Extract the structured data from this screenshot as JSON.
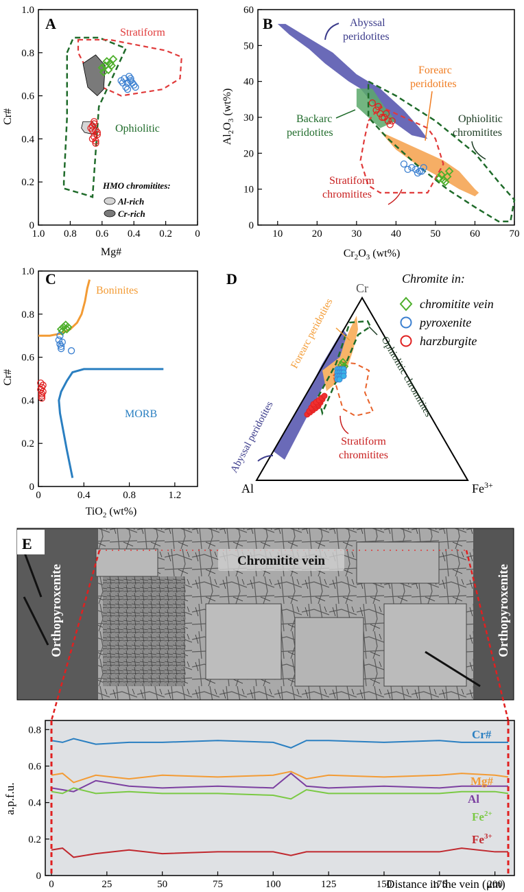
{
  "colors": {
    "chromitite_vein": "#4daf2b",
    "pyroxenite": "#3a7fd0",
    "harzburgite": "#e02020",
    "ophiolitic": "#1f6b2a",
    "stratiform": "#e03a3a",
    "abyssal": "#6a6ab8",
    "forearc": "#f5a04a",
    "backarc": "#5aa86a",
    "boninite": "#f39b34",
    "morb": "#2a7fc1",
    "profile_cr": "#2a7fc1",
    "profile_mg": "#f39b34",
    "profile_al": "#7b3fa0",
    "profile_fe2": "#7ac943",
    "profile_fe3": "#c0272d"
  },
  "chart_data": [
    {
      "panel": "A",
      "type": "scatter",
      "xlabel": "Mg#",
      "ylabel": "Cr#",
      "xlim": [
        1.0,
        0
      ],
      "ylim": [
        0,
        1.0
      ],
      "xticks": [
        "1.0",
        "0.8",
        "0.6",
        "0.4",
        "0.2",
        "0"
      ],
      "yticks": [
        "0",
        "0.2",
        "0.4",
        "0.6",
        "0.8",
        "1.0"
      ],
      "annotations": [
        "Stratiform",
        "Ophiolitic",
        "HMO chromitites:",
        "Al-rich",
        "Cr-rich"
      ],
      "series": [
        {
          "name": "chromitite vein",
          "marker": "diamond",
          "x": [
            0.6,
            0.58,
            0.56,
            0.55,
            0.57,
            0.59,
            0.54,
            0.53
          ],
          "y": [
            0.73,
            0.74,
            0.72,
            0.75,
            0.76,
            0.71,
            0.74,
            0.77
          ]
        },
        {
          "name": "pyroxenite",
          "marker": "circle",
          "x": [
            0.48,
            0.46,
            0.44,
            0.42,
            0.4,
            0.45,
            0.43,
            0.41,
            0.47,
            0.39,
            0.44,
            0.42
          ],
          "y": [
            0.67,
            0.68,
            0.66,
            0.67,
            0.65,
            0.64,
            0.69,
            0.66,
            0.66,
            0.64,
            0.63,
            0.68
          ]
        },
        {
          "name": "harzburgite",
          "marker": "circle",
          "x": [
            0.65,
            0.66,
            0.64,
            0.63,
            0.67,
            0.65,
            0.64,
            0.66,
            0.65,
            0.63,
            0.64,
            0.66
          ],
          "y": [
            0.48,
            0.46,
            0.44,
            0.42,
            0.45,
            0.41,
            0.39,
            0.4,
            0.47,
            0.43,
            0.38,
            0.44
          ]
        }
      ]
    },
    {
      "panel": "B",
      "type": "scatter",
      "xlabel": "Cr2O3 (wt%)",
      "ylabel": "Al2O3 (wt%)",
      "xlim": [
        5,
        70
      ],
      "ylim": [
        0,
        60
      ],
      "xticks": [
        "10",
        "20",
        "30",
        "40",
        "50",
        "60",
        "70"
      ],
      "yticks": [
        "0",
        "10",
        "20",
        "30",
        "40",
        "50",
        "60"
      ],
      "annotations": [
        "Abyssal peridotites",
        "Forearc peridotites",
        "Backarc peridotites",
        "Ophiolitic chromitites",
        "Stratiform chromitites"
      ],
      "series": [
        {
          "name": "chromitite vein",
          "marker": "diamond",
          "x": [
            51,
            52,
            53,
            52.5,
            51.5,
            53.5
          ],
          "y": [
            13,
            12.5,
            13.5,
            12,
            14,
            15
          ]
        },
        {
          "name": "pyroxenite",
          "marker": "circle",
          "x": [
            42,
            44,
            45,
            46,
            47,
            45.5,
            43,
            46.5
          ],
          "y": [
            17,
            16,
            15.5,
            15,
            16,
            14.5,
            15.5,
            15
          ]
        },
        {
          "name": "harzburgite",
          "marker": "circle",
          "x": [
            34,
            35,
            36,
            37,
            38,
            38.5,
            37.5,
            35.5,
            36.5,
            39
          ],
          "y": [
            34,
            32,
            31,
            30,
            29,
            28,
            31,
            33,
            30,
            29
          ]
        }
      ]
    },
    {
      "panel": "C",
      "type": "scatter",
      "xlabel": "TiO2 (wt%)",
      "ylabel": "Cr#",
      "xlim": [
        0,
        1.4
      ],
      "ylim": [
        0,
        1.0
      ],
      "xticks": [
        "0",
        "0.4",
        "0.8",
        "1.2"
      ],
      "yticks": [
        "0",
        "0.2",
        "0.4",
        "0.6",
        "0.8",
        "1.0"
      ],
      "annotations": [
        "Boninites",
        "MORB"
      ],
      "series": [
        {
          "name": "chromitite vein",
          "marker": "diamond",
          "x": [
            0.2,
            0.22,
            0.24,
            0.26,
            0.21,
            0.25
          ],
          "y": [
            0.73,
            0.74,
            0.75,
            0.74,
            0.72,
            0.73
          ]
        },
        {
          "name": "pyroxenite",
          "marker": "circle",
          "x": [
            0.18,
            0.19,
            0.2,
            0.21,
            0.19,
            0.2,
            0.29
          ],
          "y": [
            0.68,
            0.66,
            0.64,
            0.67,
            0.7,
            0.65,
            0.63
          ]
        },
        {
          "name": "harzburgite",
          "marker": "circle",
          "x": [
            0.02,
            0.03,
            0.04,
            0.03,
            0.02,
            0.04,
            0.03,
            0.03
          ],
          "y": [
            0.48,
            0.46,
            0.44,
            0.42,
            0.45,
            0.47,
            0.43,
            0.41
          ]
        }
      ]
    },
    {
      "panel": "D",
      "type": "scatter",
      "title": "",
      "corner_labels": [
        "Cr",
        "Al",
        "Fe 3+"
      ],
      "legend_title": "Chromite in:",
      "legend": [
        "chromitite vein",
        "pyroxenite",
        "harzburgite"
      ],
      "annotations": [
        "Forearc peridotites",
        "Ophiolitic chromitites",
        "Abyssal peridotites",
        "Stratiform chromitites"
      ]
    },
    {
      "panel": "E",
      "type": "line",
      "xlabel": "Distance in the vein (μm)",
      "ylabel": "a.p.f.u.",
      "xlim": [
        0,
        206
      ],
      "ylim": [
        0,
        0.85
      ],
      "xticks": [
        "0",
        "25",
        "50",
        "75",
        "100",
        "125",
        "150",
        "175",
        "200"
      ],
      "yticks": [
        "0",
        "0.2",
        "0.4",
        "0.6",
        "0.8"
      ],
      "image_labels": [
        "Chromitite vein",
        "Orthopyroxenite",
        "Orthopyroxenite"
      ],
      "x": [
        0,
        5,
        10,
        20,
        35,
        50,
        75,
        100,
        108,
        115,
        125,
        150,
        175,
        185,
        200,
        206
      ],
      "series": [
        {
          "name": "Cr#",
          "values": [
            0.74,
            0.73,
            0.75,
            0.72,
            0.73,
            0.73,
            0.74,
            0.73,
            0.7,
            0.74,
            0.74,
            0.73,
            0.74,
            0.73,
            0.73,
            0.73
          ]
        },
        {
          "name": "Mg#",
          "values": [
            0.55,
            0.56,
            0.51,
            0.55,
            0.53,
            0.55,
            0.54,
            0.55,
            0.57,
            0.53,
            0.55,
            0.54,
            0.55,
            0.56,
            0.55,
            0.54
          ]
        },
        {
          "name": "Al",
          "values": [
            0.48,
            0.47,
            0.46,
            0.52,
            0.49,
            0.48,
            0.49,
            0.48,
            0.56,
            0.49,
            0.48,
            0.49,
            0.48,
            0.49,
            0.49,
            0.49
          ]
        },
        {
          "name": "Fe2+",
          "values": [
            0.46,
            0.45,
            0.48,
            0.45,
            0.46,
            0.45,
            0.45,
            0.44,
            0.42,
            0.47,
            0.45,
            0.45,
            0.45,
            0.46,
            0.46,
            0.45
          ]
        },
        {
          "name": "Fe3+",
          "values": [
            0.14,
            0.15,
            0.1,
            0.12,
            0.14,
            0.12,
            0.13,
            0.13,
            0.11,
            0.13,
            0.13,
            0.13,
            0.13,
            0.15,
            0.13,
            0.13
          ]
        }
      ]
    }
  ],
  "panel_letters": [
    "A",
    "B",
    "C",
    "D",
    "E"
  ],
  "annotations": {
    "a_stratiform": "Stratiform",
    "a_ophiolitic": "Ophiolitic",
    "a_hmo": "HMO chromitites:",
    "a_alrich": "Al-rich",
    "a_crrich": "Cr-rich",
    "b_abyssal_1": "Abyssal",
    "b_abyssal_2": "peridotites",
    "b_forearc_1": "Forearc",
    "b_forearc_2": "peridotites",
    "b_backarc_1": "Backarc",
    "b_backarc_2": "peridotites",
    "b_ophio_1": "Ophiolitic",
    "b_ophio_2": "chromitites",
    "b_strat_1": "Stratiform",
    "b_strat_2": "chromitites",
    "c_boninites": "Boninites",
    "c_morb": "MORB",
    "d_cr": "Cr",
    "d_al": "Al",
    "d_fe": "Fe",
    "d_fe_sup": "3+",
    "d_legend_title": "Chromite in:",
    "d_legend_vein": "chromitite vein",
    "d_legend_pyx": "pyroxenite",
    "d_legend_harz": "harzburgite",
    "d_forearc": "Forearc peridotites",
    "d_ophio": "Ophiolitic chromitites",
    "d_abyssal": "Abyssal peridotites",
    "d_strat_1": "Stratiform",
    "d_strat_2": "chromitites",
    "e_vein": "Chromitite vein",
    "e_opx_left": "Orthopyroxenite",
    "e_opx_right": "Orthopyroxenite",
    "e_cr": "Cr#",
    "e_mg": "Mg#",
    "e_al": "Al",
    "e_fe2": "Fe",
    "e_fe2_sup": "2+",
    "e_fe3": "Fe",
    "e_fe3_sup": "3+"
  },
  "axes": {
    "a_xlabel": "Mg#",
    "a_ylabel": "Cr#",
    "b_xlabel_main": "Cr",
    "b_xlabel_sub1": "2",
    "b_xlabel_mid": "O",
    "b_xlabel_sub2": "3",
    "b_xlabel_tail": " (wt%)",
    "b_ylabel_main": "Al",
    "b_ylabel_sub1": "2",
    "b_ylabel_mid": "O",
    "b_ylabel_sub2": "3",
    "b_ylabel_tail": " (wt%)",
    "c_xlabel_main": "TiO",
    "c_xlabel_sub": "2",
    "c_xlabel_tail": " (wt%)",
    "c_ylabel": "Cr#",
    "e_xlabel": "Distance in the vein (μm)",
    "e_ylabel": "a.p.f.u."
  }
}
